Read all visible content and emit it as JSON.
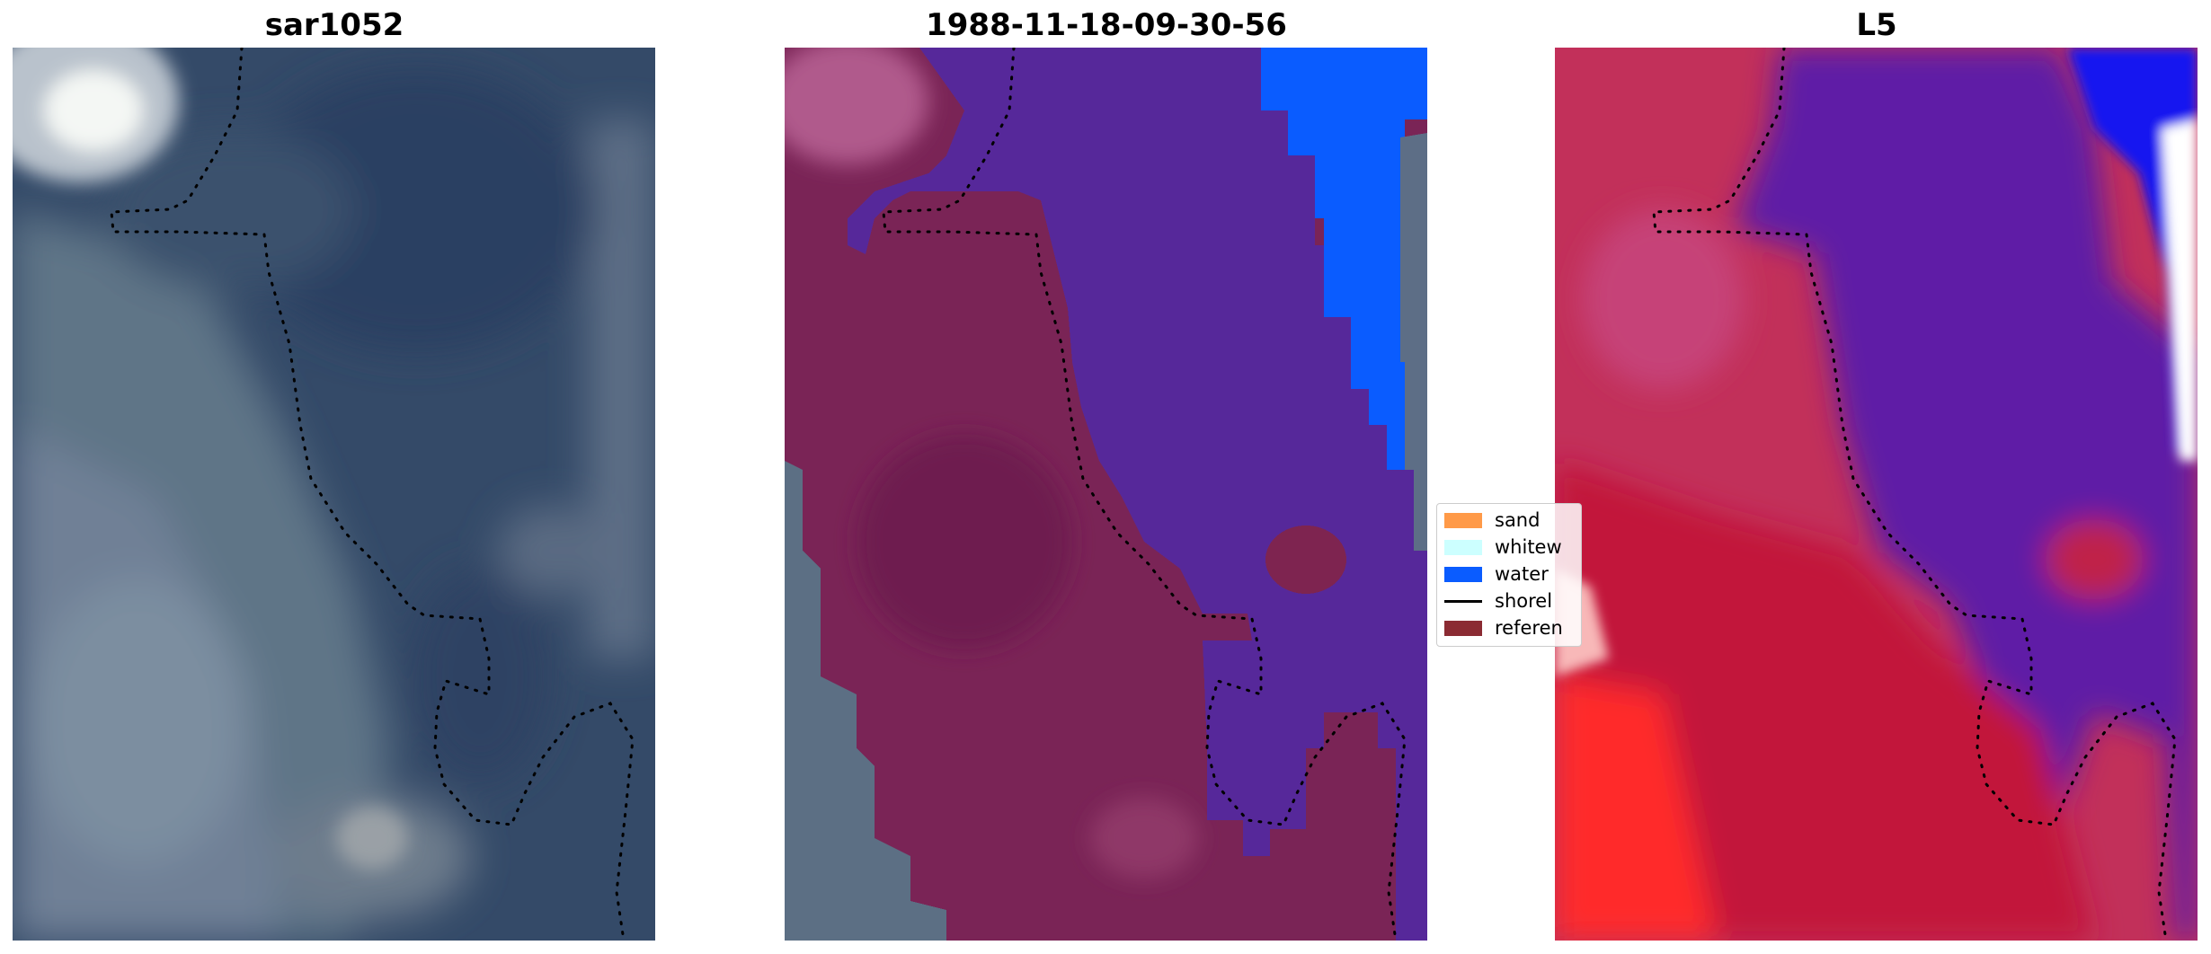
{
  "panels": [
    {
      "title": "sar1052"
    },
    {
      "title": "1988-11-18-09-30-56"
    },
    {
      "title": "L5"
    }
  ],
  "legend": {
    "entries": [
      {
        "label": "sand",
        "color": "#ff9a48",
        "kind": "patch"
      },
      {
        "label": "whitew",
        "color": "#ccffff",
        "kind": "patch"
      },
      {
        "label": "water",
        "color": "#0a5cff",
        "kind": "patch"
      },
      {
        "label": "shorel",
        "color": "#000000",
        "kind": "line"
      },
      {
        "label": "referen",
        "color": "#8b2b33",
        "kind": "patch"
      }
    ]
  },
  "colors": {
    "satellite_base": "#3f5170",
    "land_overlay": "#7a2456",
    "water_overlay": "#56289a",
    "ocean_blue": "#0a5cff",
    "index_red": "#c21032",
    "index_purple": "#5a1aa6",
    "shoreline": "#000000"
  }
}
